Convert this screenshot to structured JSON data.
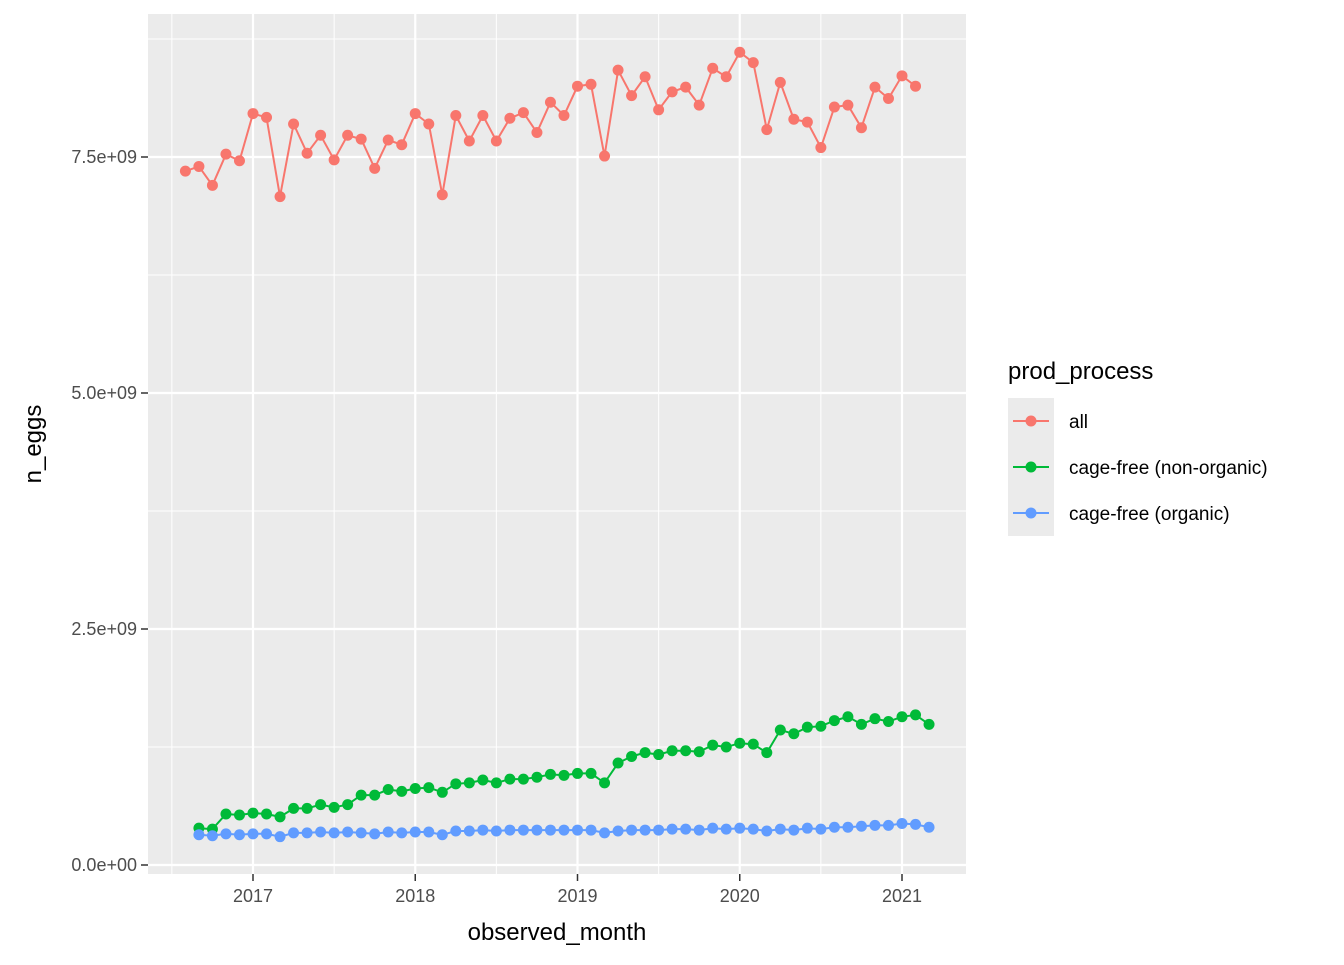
{
  "chart_data": {
    "type": "line",
    "xlabel": "observed_month",
    "ylabel": "n_eggs",
    "x_ticks": [
      "2017",
      "2018",
      "2019",
      "2020",
      "2021"
    ],
    "y_ticks": [
      "0.0e+00",
      "2.5e+09",
      "5.0e+09",
      "7.5e+09"
    ],
    "ylim": [
      0,
      9000000000
    ],
    "grid": true,
    "legend": {
      "title": "prod_process",
      "position": "right"
    },
    "x": [
      "2016-08",
      "2016-09",
      "2016-10",
      "2016-11",
      "2016-12",
      "2017-01",
      "2017-02",
      "2017-03",
      "2017-04",
      "2017-05",
      "2017-06",
      "2017-07",
      "2017-08",
      "2017-09",
      "2017-10",
      "2017-11",
      "2017-12",
      "2018-01",
      "2018-02",
      "2018-03",
      "2018-04",
      "2018-05",
      "2018-06",
      "2018-07",
      "2018-08",
      "2018-09",
      "2018-10",
      "2018-11",
      "2018-12",
      "2019-01",
      "2019-02",
      "2019-03",
      "2019-04",
      "2019-05",
      "2019-06",
      "2019-07",
      "2019-08",
      "2019-09",
      "2019-10",
      "2019-11",
      "2019-12",
      "2020-01",
      "2020-02",
      "2020-03",
      "2020-04",
      "2020-05",
      "2020-06",
      "2020-07",
      "2020-08",
      "2020-09",
      "2020-10",
      "2020-11",
      "2020-12",
      "2021-01",
      "2021-02",
      "2021-03"
    ],
    "series": [
      {
        "name": "all",
        "color": "#F8766D",
        "values": [
          7350000000,
          7400000000,
          7200000000,
          7530000000,
          7460000000,
          7960000000,
          7920000000,
          7080000000,
          7850000000,
          7540000000,
          7730000000,
          7470000000,
          7730000000,
          7690000000,
          7380000000,
          7680000000,
          7630000000,
          7960000000,
          7850000000,
          7100000000,
          7940000000,
          7670000000,
          7940000000,
          7670000000,
          7910000000,
          7970000000,
          7760000000,
          8080000000,
          7940000000,
          8250000000,
          8270000000,
          7510000000,
          8420000000,
          8150000000,
          8350000000,
          8000000000,
          8190000000,
          8240000000,
          8050000000,
          8440000000,
          8350000000,
          8610000000,
          8500000000,
          7790000000,
          8290000000,
          7900000000,
          7870000000,
          7600000000,
          8030000000,
          8050000000,
          7810000000,
          8240000000,
          8120000000,
          8360000000,
          8250000000,
          null
        ]
      },
      {
        "name": "cage-free (non-organic)",
        "color": "#00BA38",
        "values": [
          null,
          390000000,
          380000000,
          540000000,
          530000000,
          550000000,
          540000000,
          510000000,
          600000000,
          600000000,
          640000000,
          610000000,
          640000000,
          740000000,
          740000000,
          800000000,
          780000000,
          810000000,
          820000000,
          770000000,
          860000000,
          870000000,
          900000000,
          870000000,
          910000000,
          910000000,
          930000000,
          960000000,
          950000000,
          970000000,
          970000000,
          870000000,
          1080000000,
          1150000000,
          1190000000,
          1170000000,
          1210000000,
          1210000000,
          1200000000,
          1270000000,
          1250000000,
          1290000000,
          1280000000,
          1190000000,
          1430000000,
          1390000000,
          1460000000,
          1470000000,
          1530000000,
          1570000000,
          1490000000,
          1550000000,
          1520000000,
          1570000000,
          1590000000,
          1490000000
        ]
      },
      {
        "name": "cage-free (organic)",
        "color": "#619CFF",
        "values": [
          null,
          320000000,
          310000000,
          330000000,
          320000000,
          330000000,
          330000000,
          300000000,
          340000000,
          340000000,
          350000000,
          340000000,
          350000000,
          340000000,
          330000000,
          350000000,
          340000000,
          350000000,
          350000000,
          320000000,
          360000000,
          360000000,
          370000000,
          360000000,
          370000000,
          370000000,
          370000000,
          370000000,
          370000000,
          370000000,
          370000000,
          340000000,
          360000000,
          370000000,
          370000000,
          370000000,
          380000000,
          380000000,
          370000000,
          390000000,
          380000000,
          390000000,
          380000000,
          360000000,
          380000000,
          370000000,
          390000000,
          380000000,
          400000000,
          400000000,
          410000000,
          420000000,
          420000000,
          440000000,
          430000000,
          400000000
        ]
      }
    ]
  }
}
